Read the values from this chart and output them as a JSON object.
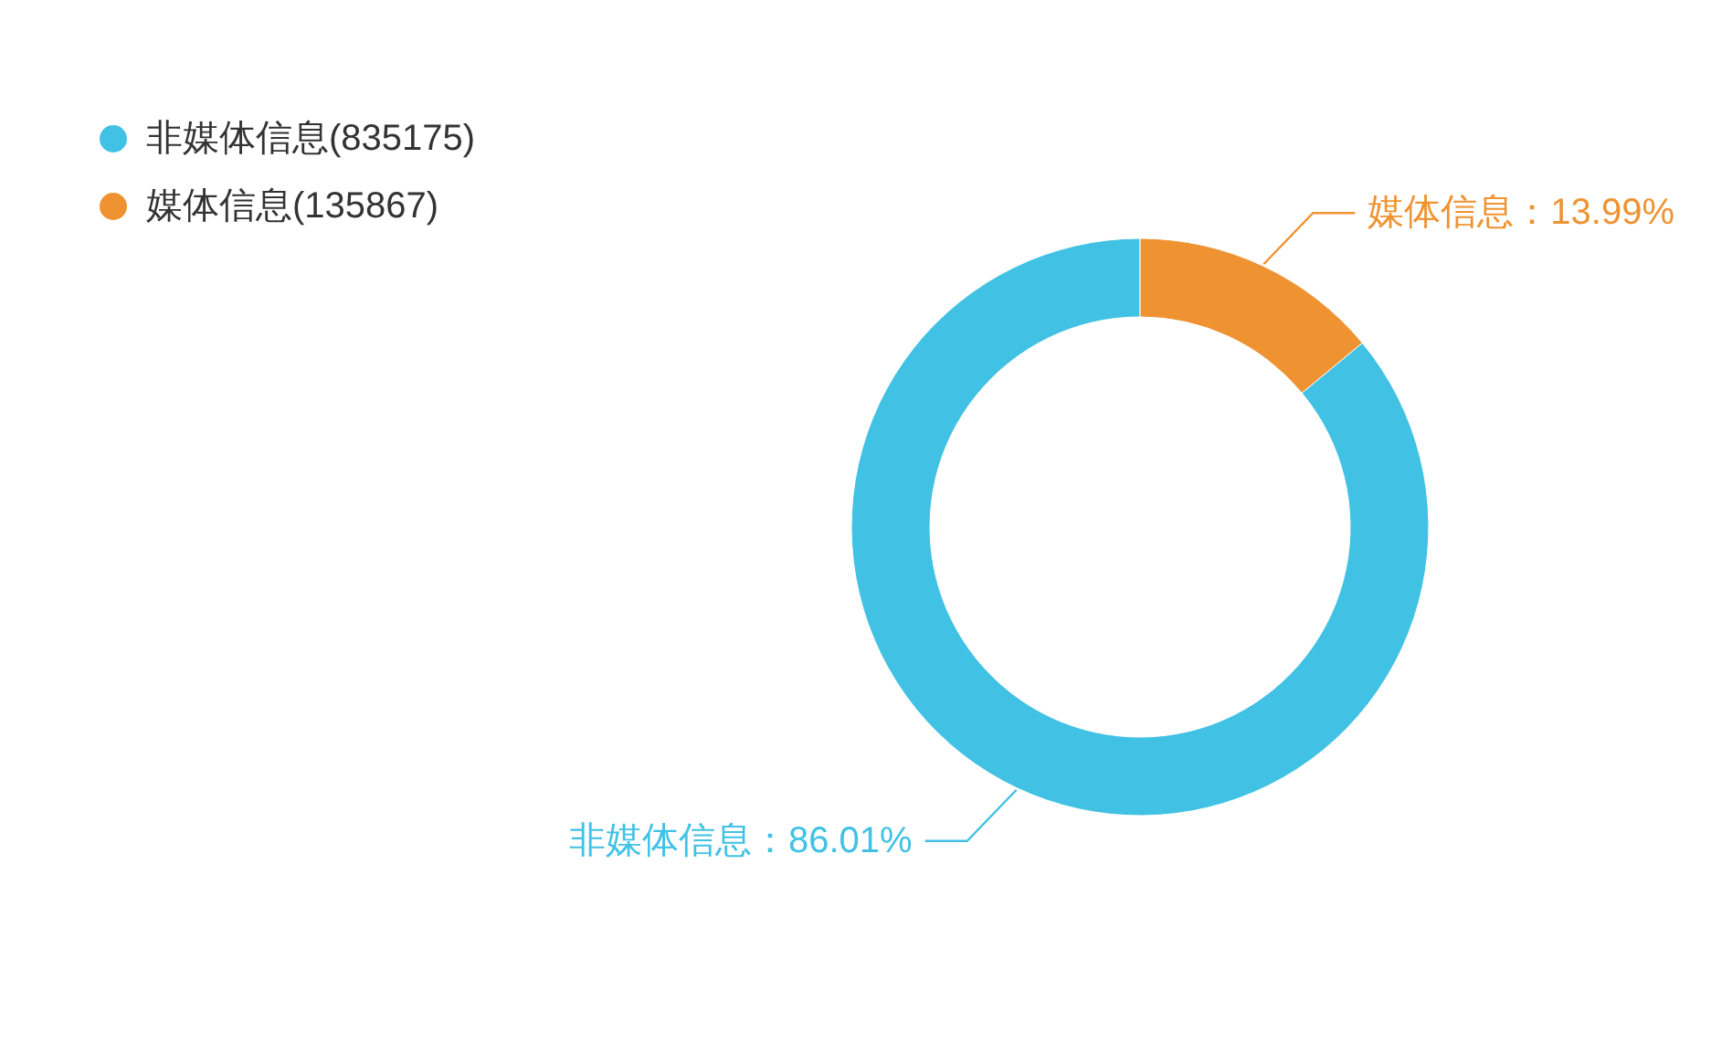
{
  "chart_data": {
    "type": "donut",
    "categories": [
      "非媒体信息(835175)",
      "媒体信息(135867)"
    ],
    "values": [
      86.01,
      13.99
    ],
    "colors": [
      "#41c2e4",
      "#ef9332"
    ],
    "value_labels": [
      "非媒体信息：86.01%",
      "媒体信息：13.99%"
    ],
    "legend": "top left"
  }
}
